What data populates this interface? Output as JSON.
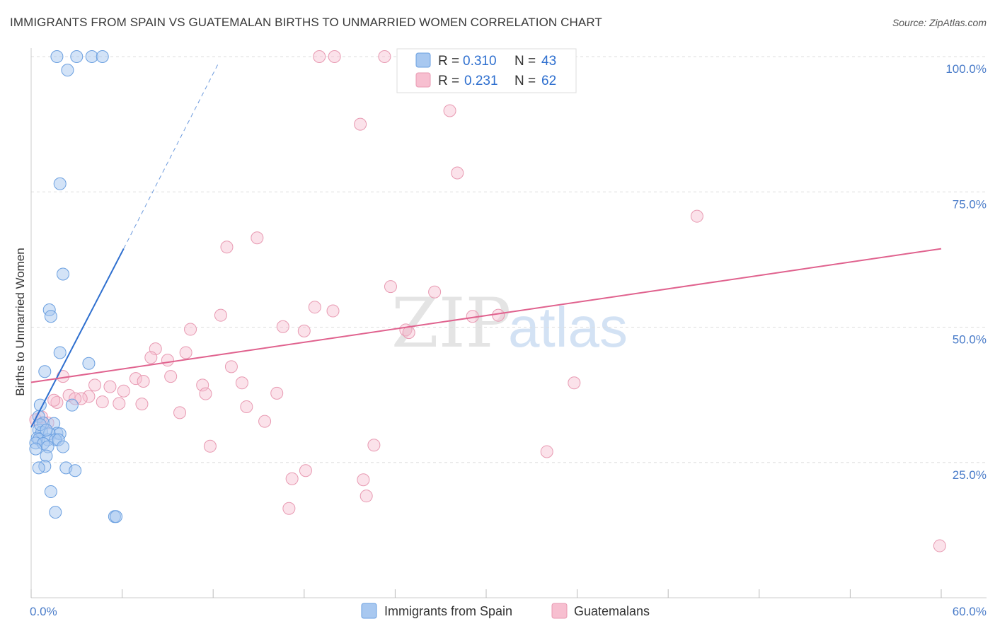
{
  "title": "IMMIGRANTS FROM SPAIN VS GUATEMALAN BIRTHS TO UNMARRIED WOMEN CORRELATION CHART",
  "source": "Source: ZipAtlas.com",
  "watermark": {
    "zip": "ZIP",
    "atlas": "atlas"
  },
  "colors": {
    "blue_fill": "#a8c8f0",
    "blue_stroke": "#6a9fe0",
    "blue_line": "#2e6fcf",
    "pink_fill": "#f7bfd0",
    "pink_stroke": "#e89ab2",
    "pink_line": "#e0628e",
    "grid": "#dddddd",
    "axis_text": "#4a7cc9"
  },
  "legend": {
    "r_label": "R =",
    "n_label": "N =",
    "series1": {
      "r": "0.310",
      "n": "43"
    },
    "series2": {
      "r": "0.231",
      "n": "62"
    }
  },
  "chart_data": {
    "type": "scatter",
    "title": "IMMIGRANTS FROM SPAIN VS GUATEMALAN BIRTHS TO UNMARRIED WOMEN CORRELATION CHART",
    "xlabel": "",
    "ylabel": "Births to Unmarried Women",
    "xlim": [
      0,
      60
    ],
    "ylim": [
      0,
      105
    ],
    "x_tick_labels": [
      {
        "value": 0,
        "label": "0.0%"
      },
      {
        "value": 60,
        "label": "60.0%"
      }
    ],
    "y_tick_labels": [
      {
        "value": 25,
        "label": "25.0%"
      },
      {
        "value": 50,
        "label": "50.0%"
      },
      {
        "value": 75,
        "label": "75.0%"
      },
      {
        "value": 100,
        "label": "100.0%"
      }
    ],
    "grid": true,
    "series": [
      {
        "name": "Immigrants from Spain",
        "r": 0.31,
        "n": 43,
        "trend": {
          "x0": 0.0,
          "y0": 31.5,
          "x1": 6.1,
          "y1": 64.5,
          "dash_to": [
            12.3,
            98.5
          ]
        },
        "points": [
          [
            1.7,
            100.0
          ],
          [
            3.0,
            100.0
          ],
          [
            4.0,
            100.0
          ],
          [
            4.7,
            100.0
          ],
          [
            2.4,
            97.5
          ],
          [
            1.9,
            76.5
          ],
          [
            2.1,
            59.8
          ],
          [
            1.2,
            53.2
          ],
          [
            1.3,
            52.0
          ],
          [
            1.9,
            45.3
          ],
          [
            3.8,
            43.3
          ],
          [
            0.9,
            41.8
          ],
          [
            0.6,
            35.6
          ],
          [
            2.7,
            35.6
          ],
          [
            0.5,
            33.5
          ],
          [
            0.8,
            32.3
          ],
          [
            1.5,
            32.2
          ],
          [
            0.5,
            31.0
          ],
          [
            0.7,
            30.6
          ],
          [
            1.7,
            30.4
          ],
          [
            1.2,
            30.3
          ],
          [
            1.9,
            30.3
          ],
          [
            0.4,
            29.5
          ],
          [
            0.5,
            29.3
          ],
          [
            1.1,
            29.2
          ],
          [
            1.6,
            29.2
          ],
          [
            1.8,
            29.2
          ],
          [
            0.3,
            28.6
          ],
          [
            0.8,
            28.5
          ],
          [
            1.1,
            27.9
          ],
          [
            2.1,
            27.9
          ],
          [
            0.3,
            27.5
          ],
          [
            1.0,
            26.2
          ],
          [
            0.9,
            24.3
          ],
          [
            0.5,
            24.0
          ],
          [
            2.3,
            24.0
          ],
          [
            2.9,
            23.5
          ],
          [
            1.3,
            19.6
          ],
          [
            1.6,
            15.8
          ],
          [
            5.5,
            15.0
          ],
          [
            5.6,
            15.0
          ],
          [
            0.6,
            32.0
          ],
          [
            1.0,
            31.0
          ]
        ]
      },
      {
        "name": "Guatemalans",
        "r": 0.231,
        "n": 62,
        "trend": {
          "x0": 0.0,
          "y0": 39.8,
          "x1": 60.0,
          "y1": 64.5
        },
        "points": [
          [
            19.0,
            100.0
          ],
          [
            20.0,
            100.0
          ],
          [
            23.3,
            100.0
          ],
          [
            27.6,
            90.0
          ],
          [
            21.7,
            87.5
          ],
          [
            28.1,
            78.5
          ],
          [
            43.9,
            70.5
          ],
          [
            14.9,
            66.5
          ],
          [
            12.9,
            64.8
          ],
          [
            23.7,
            57.5
          ],
          [
            26.6,
            56.5
          ],
          [
            18.7,
            53.7
          ],
          [
            19.9,
            53.0
          ],
          [
            12.5,
            52.2
          ],
          [
            29.1,
            52.0
          ],
          [
            30.8,
            52.2
          ],
          [
            16.6,
            50.1
          ],
          [
            10.5,
            49.6
          ],
          [
            18.0,
            49.3
          ],
          [
            24.7,
            49.5
          ],
          [
            24.9,
            49.0
          ],
          [
            8.2,
            46.0
          ],
          [
            10.2,
            45.3
          ],
          [
            7.9,
            44.4
          ],
          [
            9.0,
            43.9
          ],
          [
            13.2,
            42.7
          ],
          [
            2.1,
            40.9
          ],
          [
            9.2,
            40.9
          ],
          [
            6.9,
            40.5
          ],
          [
            7.4,
            40.0
          ],
          [
            4.2,
            39.3
          ],
          [
            5.2,
            39.0
          ],
          [
            13.9,
            39.7
          ],
          [
            11.3,
            39.3
          ],
          [
            35.8,
            39.7
          ],
          [
            6.1,
            38.2
          ],
          [
            2.5,
            37.4
          ],
          [
            3.8,
            37.2
          ],
          [
            11.5,
            37.7
          ],
          [
            16.2,
            37.8
          ],
          [
            3.3,
            36.8
          ],
          [
            4.7,
            36.2
          ],
          [
            1.7,
            36.1
          ],
          [
            5.8,
            35.9
          ],
          [
            7.3,
            35.8
          ],
          [
            14.2,
            35.3
          ],
          [
            9.8,
            34.2
          ],
          [
            0.7,
            33.4
          ],
          [
            0.3,
            32.9
          ],
          [
            1.1,
            32.3
          ],
          [
            15.4,
            32.6
          ],
          [
            11.8,
            28.0
          ],
          [
            22.6,
            28.2
          ],
          [
            34.0,
            27.0
          ],
          [
            18.1,
            23.5
          ],
          [
            17.2,
            22.0
          ],
          [
            21.9,
            21.8
          ],
          [
            22.1,
            18.8
          ],
          [
            17.0,
            16.5
          ],
          [
            59.9,
            9.6
          ],
          [
            1.5,
            36.5
          ],
          [
            2.9,
            36.8
          ]
        ]
      }
    ]
  },
  "bottom_legend": [
    "Immigrants from Spain",
    "Guatemalans"
  ]
}
